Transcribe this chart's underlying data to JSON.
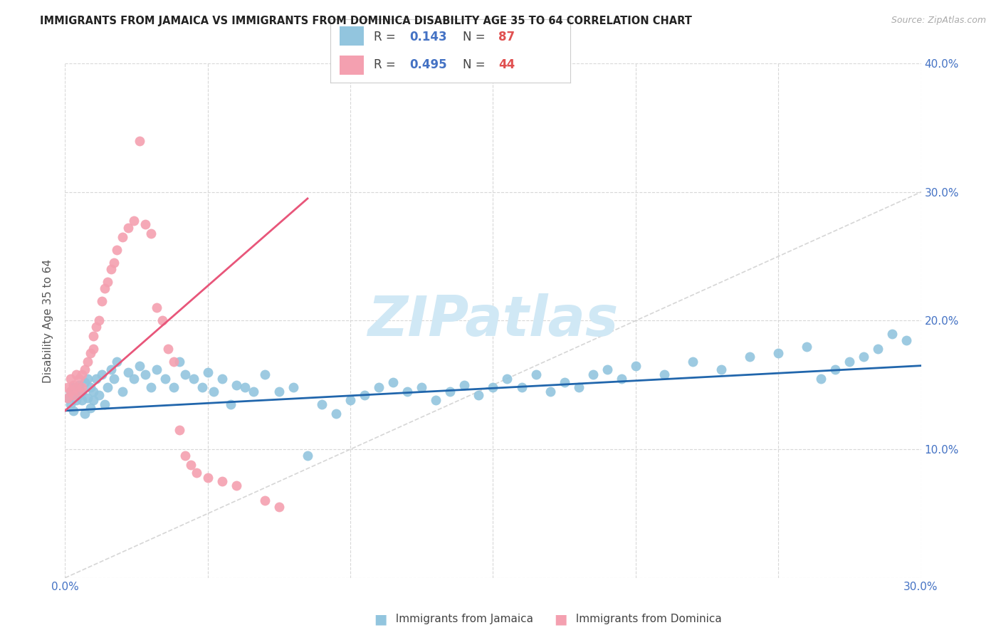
{
  "title": "IMMIGRANTS FROM JAMAICA VS IMMIGRANTS FROM DOMINICA DISABILITY AGE 35 TO 64 CORRELATION CHART",
  "source": "Source: ZipAtlas.com",
  "ylabel_label": "Disability Age 35 to 64",
  "xlim": [
    0.0,
    0.3
  ],
  "ylim": [
    0.0,
    0.4
  ],
  "xticks": [
    0.0,
    0.05,
    0.1,
    0.15,
    0.2,
    0.25,
    0.3
  ],
  "xtick_labels": [
    "0.0%",
    "",
    "",
    "",
    "",
    "",
    "30.0%"
  ],
  "yticks": [
    0.0,
    0.1,
    0.2,
    0.3,
    0.4
  ],
  "ytick_labels": [
    "",
    "10.0%",
    "20.0%",
    "30.0%",
    "40.0%"
  ],
  "jamaica_color": "#92c5de",
  "dominica_color": "#f4a0b0",
  "jamaica_line_color": "#2166ac",
  "dominica_line_color": "#e8567a",
  "diagonal_color": "#cccccc",
  "watermark_color": "#d0e8f5",
  "legend_R_jamaica": "0.143",
  "legend_N_jamaica": "87",
  "legend_R_dominica": "0.495",
  "legend_N_dominica": "44",
  "jamaica_scatter_x": [
    0.001,
    0.002,
    0.002,
    0.003,
    0.003,
    0.004,
    0.004,
    0.005,
    0.005,
    0.006,
    0.006,
    0.007,
    0.007,
    0.008,
    0.008,
    0.009,
    0.009,
    0.01,
    0.01,
    0.011,
    0.012,
    0.013,
    0.014,
    0.015,
    0.016,
    0.017,
    0.018,
    0.02,
    0.022,
    0.024,
    0.026,
    0.028,
    0.03,
    0.032,
    0.035,
    0.038,
    0.04,
    0.042,
    0.045,
    0.048,
    0.05,
    0.052,
    0.055,
    0.058,
    0.06,
    0.063,
    0.066,
    0.07,
    0.075,
    0.08,
    0.085,
    0.09,
    0.095,
    0.1,
    0.105,
    0.11,
    0.115,
    0.12,
    0.125,
    0.13,
    0.135,
    0.14,
    0.145,
    0.15,
    0.155,
    0.16,
    0.165,
    0.17,
    0.175,
    0.18,
    0.185,
    0.19,
    0.195,
    0.2,
    0.21,
    0.22,
    0.23,
    0.24,
    0.25,
    0.26,
    0.265,
    0.27,
    0.275,
    0.28,
    0.285,
    0.29,
    0.295
  ],
  "jamaica_scatter_y": [
    0.14,
    0.135,
    0.145,
    0.13,
    0.148,
    0.138,
    0.143,
    0.142,
    0.15,
    0.138,
    0.145,
    0.152,
    0.128,
    0.14,
    0.155,
    0.132,
    0.148,
    0.138,
    0.145,
    0.155,
    0.142,
    0.158,
    0.135,
    0.148,
    0.162,
    0.155,
    0.168,
    0.145,
    0.16,
    0.155,
    0.165,
    0.158,
    0.148,
    0.162,
    0.155,
    0.148,
    0.168,
    0.158,
    0.155,
    0.148,
    0.16,
    0.145,
    0.155,
    0.135,
    0.15,
    0.148,
    0.145,
    0.158,
    0.145,
    0.148,
    0.095,
    0.135,
    0.128,
    0.138,
    0.142,
    0.148,
    0.152,
    0.145,
    0.148,
    0.138,
    0.145,
    0.15,
    0.142,
    0.148,
    0.155,
    0.148,
    0.158,
    0.145,
    0.152,
    0.148,
    0.158,
    0.162,
    0.155,
    0.165,
    0.158,
    0.168,
    0.162,
    0.172,
    0.175,
    0.18,
    0.155,
    0.162,
    0.168,
    0.172,
    0.178,
    0.19,
    0.185
  ],
  "dominica_scatter_x": [
    0.001,
    0.001,
    0.002,
    0.002,
    0.003,
    0.003,
    0.004,
    0.004,
    0.005,
    0.005,
    0.006,
    0.006,
    0.007,
    0.008,
    0.009,
    0.01,
    0.01,
    0.011,
    0.012,
    0.013,
    0.014,
    0.015,
    0.016,
    0.017,
    0.018,
    0.02,
    0.022,
    0.024,
    0.026,
    0.028,
    0.03,
    0.032,
    0.034,
    0.036,
    0.038,
    0.04,
    0.042,
    0.044,
    0.046,
    0.05,
    0.055,
    0.06,
    0.07,
    0.075
  ],
  "dominica_scatter_y": [
    0.14,
    0.148,
    0.145,
    0.155,
    0.142,
    0.15,
    0.148,
    0.158,
    0.145,
    0.155,
    0.148,
    0.158,
    0.162,
    0.168,
    0.175,
    0.178,
    0.188,
    0.195,
    0.2,
    0.215,
    0.225,
    0.23,
    0.24,
    0.245,
    0.255,
    0.265,
    0.272,
    0.278,
    0.34,
    0.275,
    0.268,
    0.21,
    0.2,
    0.178,
    0.168,
    0.115,
    0.095,
    0.088,
    0.082,
    0.078,
    0.075,
    0.072,
    0.06,
    0.055
  ],
  "jamaica_regline_x": [
    0.0,
    0.3
  ],
  "jamaica_regline_y": [
    0.13,
    0.165
  ],
  "dominica_regline_x": [
    0.0,
    0.085
  ],
  "dominica_regline_y": [
    0.13,
    0.295
  ]
}
